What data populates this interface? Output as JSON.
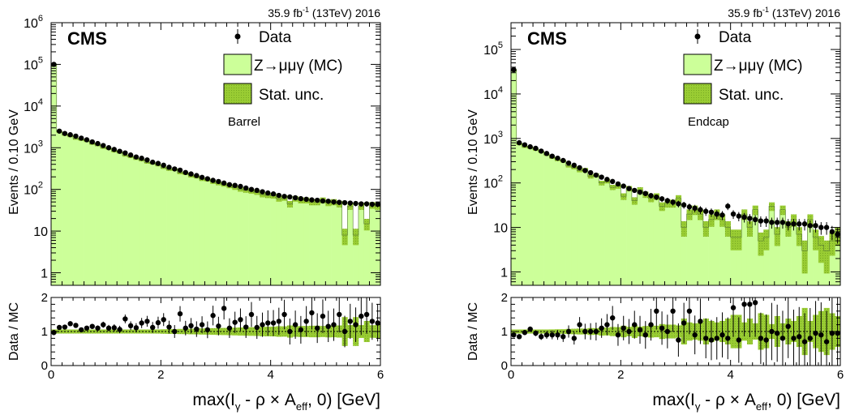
{
  "figure": {
    "lumi_label": "35.9 fb",
    "lumi_exp": "-1",
    "lumi_rest": " (13TeV) 2016",
    "experiment": "CMS",
    "xlabel_main": "max(I",
    "xlabel_sub1": "γ",
    "xlabel_mid": " - ρ × A",
    "xlabel_sub2": "eff",
    "xlabel_end": ", 0) [GeV]",
    "top_ylabel": "Events / 0.10 GeV",
    "ratio_ylabel": "Data / MC",
    "legend": {
      "data": "Data",
      "mc": "Z→μμγ (MC)",
      "unc": "Stat. unc."
    },
    "colors": {
      "mc_fill": "#ccff99",
      "unc_fill": "#99cc33",
      "data": "#000000"
    }
  },
  "chart_data": [
    {
      "type": "bar",
      "region": "Barrel",
      "xlim": [
        0,
        6
      ],
      "ylim": [
        0.5,
        1000000
      ],
      "yscale": "log",
      "ratio_ylim": [
        0,
        2
      ],
      "x_ticks": [
        "0",
        "2",
        "4",
        "6"
      ],
      "y_ticks": [
        {
          "v": 1000000,
          "label": "10",
          "exp": "6"
        },
        {
          "v": 100000,
          "label": "10",
          "exp": "5"
        },
        {
          "v": 10000,
          "label": "10",
          "exp": "4"
        },
        {
          "v": 1000,
          "label": "10",
          "exp": "3"
        },
        {
          "v": 100,
          "label": "10",
          "exp": "2"
        },
        {
          "v": 10,
          "label": "10",
          "exp": ""
        },
        {
          "v": 1,
          "label": "1",
          "exp": ""
        }
      ],
      "ratio_ticks": [
        "0",
        "1",
        "2"
      ],
      "bin_width": 0.1,
      "data": [
        100000,
        2500,
        2200,
        2050,
        1900,
        1700,
        1550,
        1380,
        1260,
        1130,
        1000,
        910,
        820,
        750,
        670,
        600,
        560,
        510,
        450,
        420,
        380,
        340,
        310,
        290,
        255,
        235,
        215,
        195,
        180,
        165,
        155,
        142,
        130,
        125,
        118,
        108,
        100,
        95,
        88,
        82,
        78,
        72,
        68,
        66,
        63,
        60,
        58,
        56,
        55,
        53,
        52,
        50,
        49,
        48,
        47,
        46,
        45,
        45,
        44,
        44
      ],
      "mc": [
        98000,
        2400,
        2050,
        1900,
        1650,
        1550,
        1450,
        1250,
        1150,
        1000,
        950,
        820,
        770,
        650,
        600,
        540,
        500,
        440,
        420,
        380,
        330,
        300,
        300,
        250,
        240,
        210,
        200,
        175,
        170,
        150,
        140,
        130,
        120,
        110,
        100,
        95,
        90,
        85,
        75,
        72,
        70,
        60,
        63,
        45,
        60,
        55,
        55,
        50,
        50,
        55,
        48,
        50,
        45,
        8,
        40,
        8,
        40,
        15,
        42,
        40
      ],
      "ratio": [
        0.97,
        1.12,
        1.13,
        1.23,
        1.18,
        1.05,
        1.1,
        1.15,
        1.1,
        1.2,
        1.1,
        1.11,
        1.06,
        1.37,
        1.17,
        1.11,
        1.25,
        1.3,
        1.12,
        1.26,
        1.35,
        1.13,
        1.0,
        1.52,
        1.1,
        1.17,
        1.07,
        1.2,
        1.05,
        1.47,
        1.16,
        1.68,
        1.1,
        1.27,
        1.35,
        1.13,
        1.5,
        1.12,
        1.2,
        1.25,
        1.25,
        1.3,
        1.5,
        1.0,
        1.2,
        1.05,
        1.3,
        1.55,
        1.1,
        1.45,
        1.15,
        1.2,
        1.5,
        1.0,
        1.3,
        1.2,
        1.45,
        1.5,
        1.3,
        1.25
      ]
    },
    {
      "type": "bar",
      "region": "Endcap",
      "xlim": [
        0,
        6
      ],
      "ylim": [
        0.5,
        400000
      ],
      "yscale": "log",
      "ratio_ylim": [
        0,
        2
      ],
      "x_ticks": [
        "0",
        "2",
        "4",
        "6"
      ],
      "y_ticks": [
        {
          "v": 100000,
          "label": "10",
          "exp": "5"
        },
        {
          "v": 10000,
          "label": "10",
          "exp": "4"
        },
        {
          "v": 1000,
          "label": "10",
          "exp": "3"
        },
        {
          "v": 100,
          "label": "10",
          "exp": "2"
        },
        {
          "v": 10,
          "label": "10",
          "exp": ""
        },
        {
          "v": 1,
          "label": "1",
          "exp": ""
        }
      ],
      "ratio_ticks": [
        "0",
        "1",
        "2"
      ],
      "bin_width": 0.1,
      "data": [
        35000,
        800,
        720,
        650,
        600,
        520,
        460,
        400,
        360,
        320,
        280,
        250,
        220,
        190,
        170,
        150,
        135,
        120,
        108,
        95,
        85,
        75,
        68,
        62,
        58,
        52,
        48,
        44,
        40,
        37,
        34,
        32,
        29,
        27,
        25,
        23,
        22,
        20,
        19,
        30,
        20,
        18,
        17,
        16,
        15,
        14,
        14,
        13,
        13,
        13,
        12,
        12,
        12,
        12,
        11,
        11,
        10,
        10,
        8,
        7
      ],
      "mc": [
        34000,
        750,
        650,
        620,
        560,
        500,
        430,
        370,
        330,
        310,
        240,
        220,
        190,
        200,
        140,
        150,
        100,
        110,
        80,
        85,
        50,
        75,
        40,
        70,
        55,
        45,
        50,
        30,
        35,
        35,
        45,
        10,
        20,
        25,
        20,
        10,
        15,
        20,
        15,
        10,
        6,
        6,
        20,
        10,
        25,
        5,
        6,
        30,
        7,
        25,
        10,
        15,
        7,
        3,
        15,
        6,
        4,
        3,
        5,
        7
      ],
      "ratio": [
        0.9,
        0.85,
        0.97,
        1.07,
        0.95,
        0.85,
        0.9,
        0.9,
        0.9,
        0.85,
        1.0,
        0.8,
        1.2,
        1.0,
        1.0,
        1.0,
        1.1,
        1.2,
        1.4,
        0.9,
        1.1,
        1.0,
        1.2,
        1.05,
        0.9,
        1.2,
        1.6,
        1.1,
        1.0,
        1.6,
        0.75,
        1.25,
        1.6,
        0.9,
        1.3,
        0.8,
        0.75,
        0.8,
        0.9,
        0.8,
        1.7,
        0.75,
        1.8,
        1.8,
        1.85,
        0.8,
        0.75,
        1.0,
        0.95,
        0.8,
        1.15,
        0.8,
        0.85,
        0.7,
        0.8,
        0.95,
        0.9,
        0.7,
        0.95,
        0.95
      ]
    }
  ]
}
